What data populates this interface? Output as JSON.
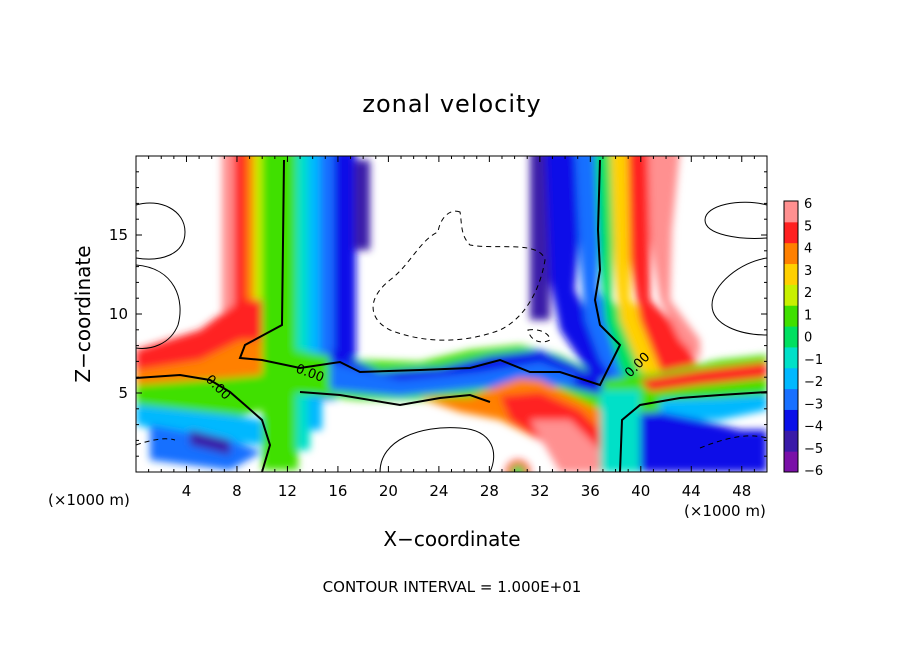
{
  "chart_data": {
    "type": "heatmap",
    "title": "zonal velocity",
    "xlabel": "X−coordinate",
    "ylabel": "Z−coordinate",
    "x_unit": "(×1000 m)",
    "y_unit": "(×1000 m)",
    "xlim": [
      0,
      50
    ],
    "ylim": [
      0,
      20
    ],
    "x_ticks": [
      "4",
      "8",
      "12",
      "16",
      "20",
      "24",
      "28",
      "32",
      "36",
      "40",
      "44",
      "48"
    ],
    "y_ticks": [
      "5",
      "10",
      "15"
    ],
    "colorbar": {
      "ticks": [
        "6",
        "5",
        "4",
        "3",
        "2",
        "1",
        "0",
        "−1",
        "−2",
        "−3",
        "−4",
        "−5",
        "−6"
      ],
      "range": [
        -6,
        6
      ],
      "colors": [
        "#7a10a8",
        "#3a1aa8",
        "#0a10e8",
        "#1870ff",
        "#00b8ff",
        "#00e0c8",
        "#00e060",
        "#40e000",
        "#c8f000",
        "#ffd000",
        "#ff8000",
        "#ff2020",
        "#ff9090"
      ]
    },
    "contour_label": "0.00",
    "footnote": "CONTOUR INTERVAL = 1.000E+01"
  }
}
